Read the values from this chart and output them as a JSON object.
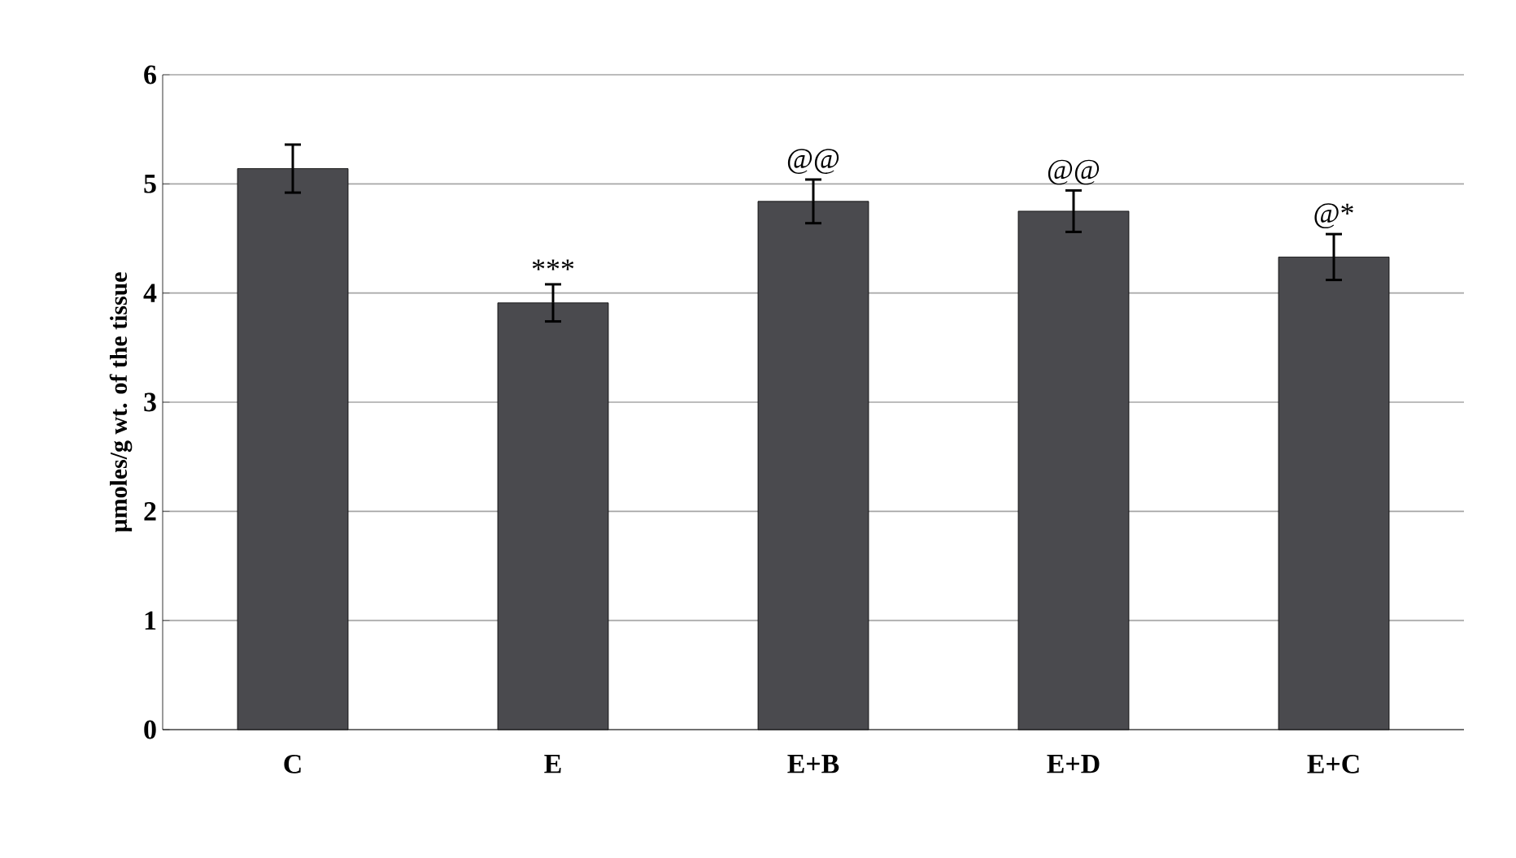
{
  "chart_data": {
    "type": "bar",
    "ylabel": "µmoles/g wt. of the tissue",
    "categories": [
      "C",
      "E",
      "E+B",
      "E+D",
      "E+C"
    ],
    "values": [
      5.14,
      3.91,
      4.84,
      4.75,
      4.33
    ],
    "errors": [
      0.22,
      0.17,
      0.2,
      0.19,
      0.21
    ],
    "color": "#4a4a4e",
    "ylim": [
      0,
      6
    ],
    "yticks": [
      0,
      1,
      2,
      3,
      4,
      5,
      6
    ],
    "grid": "y",
    "annotations": [
      {
        "text": "***",
        "x": "E",
        "y": 4.08
      },
      {
        "text": "@@",
        "x": "E+B",
        "y": 5.04
      },
      {
        "text": "@@",
        "x": "E+D",
        "y": 4.94
      },
      {
        "text": "@*",
        "x": "E+C",
        "y": 4.54
      }
    ]
  }
}
